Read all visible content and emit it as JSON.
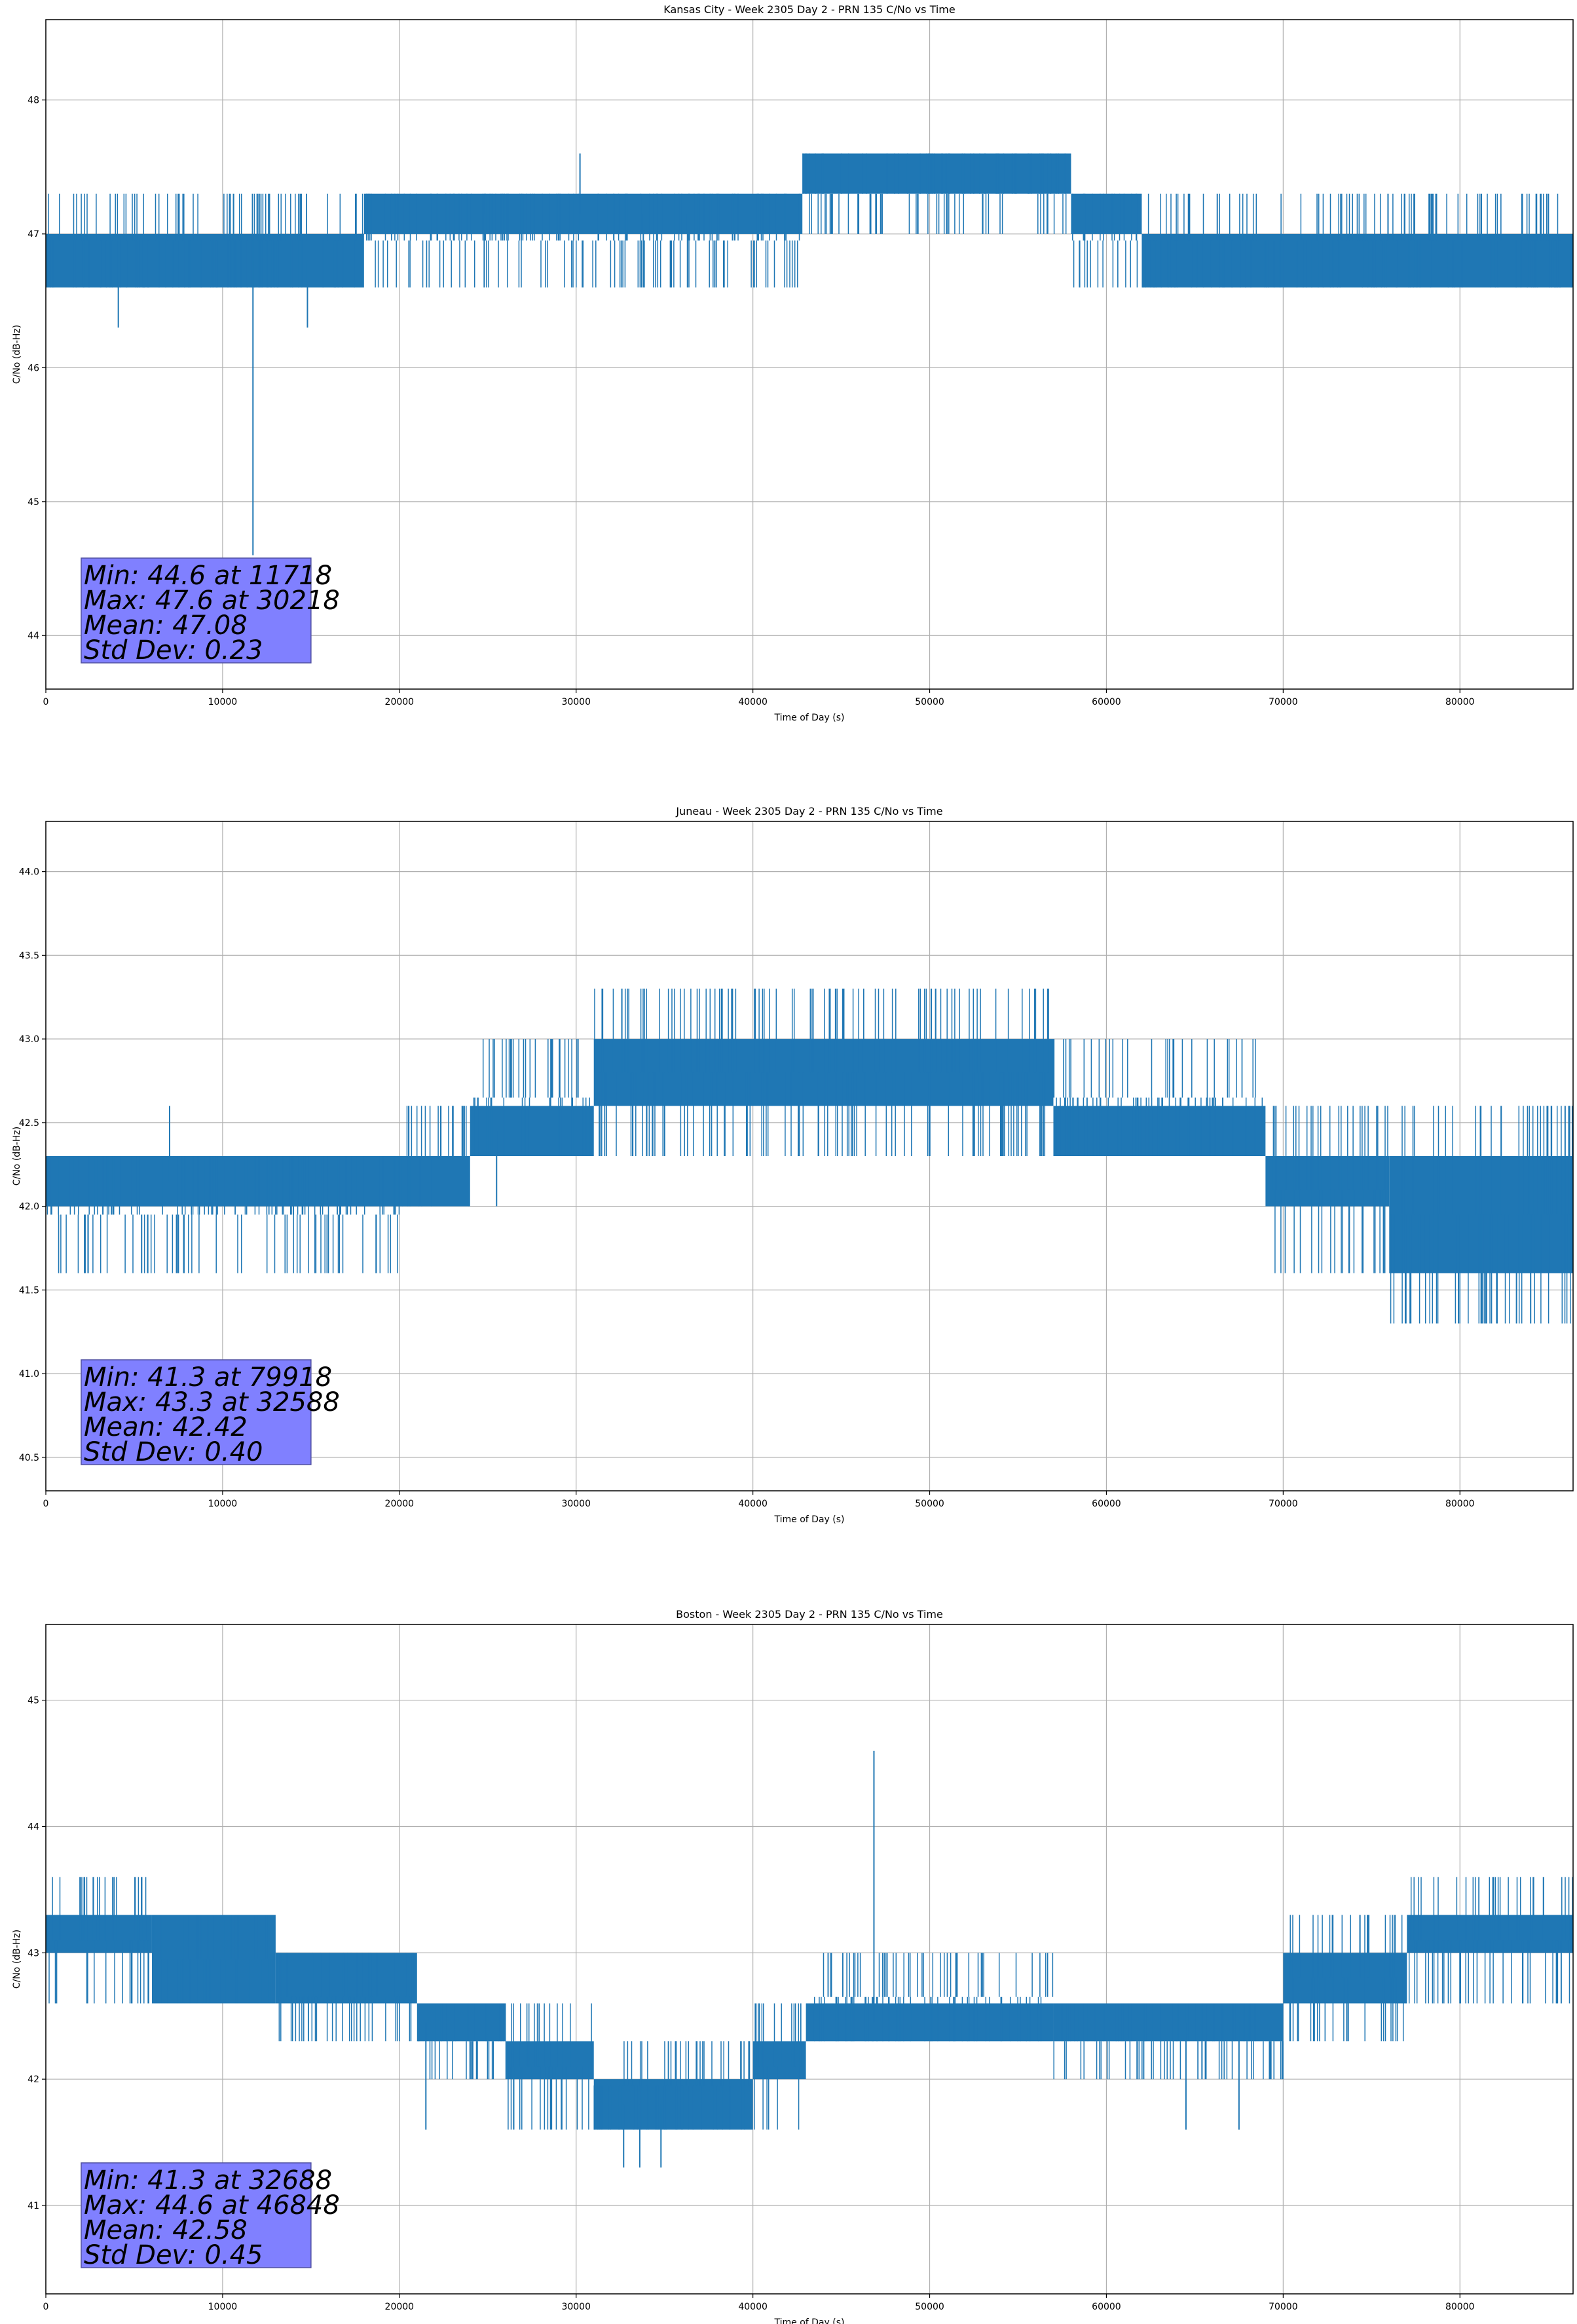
{
  "colors": {
    "series": "#1f77b4",
    "grid": "#b0b0b0",
    "stats_box_fill": "#8080ff",
    "stats_box_edge": "#5050a0",
    "axes": "#000000"
  },
  "chart_data": [
    {
      "type": "line",
      "title": "Kansas City - Week 2305 Day 2 - PRN 135 C/No vs Time",
      "xlabel": "Time of Day (s)",
      "ylabel": "C/No (dB-Hz)",
      "xlim": [
        0,
        86400
      ],
      "ylim": [
        43.6,
        48.6
      ],
      "xticks": [
        0,
        10000,
        20000,
        30000,
        40000,
        50000,
        60000,
        70000,
        80000
      ],
      "yticks": [
        44,
        45,
        46,
        47,
        48
      ],
      "ytick_labels": [
        "44",
        "45",
        "46",
        "47",
        "48"
      ],
      "grid": true,
      "stats": [
        "Min: 44.6 at 11718",
        "Max: 47.6 at 30218",
        "Mean: 47.08",
        "Std Dev: 0.23"
      ],
      "stats_values": {
        "min": 44.6,
        "min_time": 11718,
        "max": 47.6,
        "max_time": 30218,
        "mean": 47.08,
        "std": 0.23
      },
      "series": [
        {
          "bands": [
            {
              "x": [
                0,
                18000
              ],
              "y": [
                46.6,
                47.0
              ]
            },
            {
              "x": [
                18000,
                42800
              ],
              "y": [
                47.0,
                47.3
              ]
            },
            {
              "x": [
                42800,
                58000
              ],
              "y": [
                47.3,
                47.6
              ]
            },
            {
              "x": [
                58000,
                62000
              ],
              "y": [
                47.0,
                47.3
              ]
            },
            {
              "x": [
                62000,
                86400
              ],
              "y": [
                46.6,
                47.0
              ]
            }
          ],
          "spikes": [
            {
              "x": [
                0,
                18000
              ],
              "lo": 46.6,
              "hi": 47.3
            },
            {
              "x": [
                18000,
                42800
              ],
              "lo": 46.6,
              "hi": 47.3
            },
            {
              "x": [
                42800,
                58000
              ],
              "lo": 47.0,
              "hi": 47.6
            },
            {
              "x": [
                58000,
                62000
              ],
              "lo": 46.6,
              "hi": 47.3
            },
            {
              "x": [
                62000,
                86400
              ],
              "lo": 46.6,
              "hi": 47.3
            }
          ],
          "outliers": [
            {
              "x": 11718,
              "y": 44.6
            },
            {
              "x": 4100,
              "y": 46.3
            },
            {
              "x": 14800,
              "y": 46.3
            },
            {
              "x": 30218,
              "y": 47.6
            },
            {
              "x": 24800,
              "y": 46.6
            },
            {
              "x": 33800,
              "y": 46.6
            },
            {
              "x": 36300,
              "y": 46.6
            }
          ]
        }
      ]
    },
    {
      "type": "line",
      "title": "Juneau - Week 2305 Day 2 - PRN 135 C/No vs Time",
      "xlabel": "Time of Day (s)",
      "ylabel": "C/No (dB-Hz)",
      "xlim": [
        0,
        86400
      ],
      "ylim": [
        40.3,
        44.3
      ],
      "xticks": [
        0,
        10000,
        20000,
        30000,
        40000,
        50000,
        60000,
        70000,
        80000
      ],
      "yticks": [
        40.5,
        41.0,
        41.5,
        42.0,
        42.5,
        43.0,
        43.5,
        44.0
      ],
      "ytick_labels": [
        "40.5",
        "41.0",
        "41.5",
        "42.0",
        "42.5",
        "43.0",
        "43.5",
        "44.0"
      ],
      "grid": true,
      "stats": [
        "Min: 41.3 at 79918",
        "Max: 43.3 at 32588",
        "Mean: 42.42",
        "Std Dev: 0.40"
      ],
      "stats_values": {
        "min": 41.3,
        "min_time": 79918,
        "max": 43.3,
        "max_time": 32588,
        "mean": 42.42,
        "std": 0.4
      },
      "series": [
        {
          "bands": [
            {
              "x": [
                0,
                20000
              ],
              "y": [
                42.0,
                42.3
              ]
            },
            {
              "x": [
                20000,
                24000
              ],
              "y": [
                42.0,
                42.3
              ]
            },
            {
              "x": [
                24000,
                31000
              ],
              "y": [
                42.3,
                42.6
              ]
            },
            {
              "x": [
                31000,
                57000
              ],
              "y": [
                42.6,
                43.0
              ]
            },
            {
              "x": [
                57000,
                69000
              ],
              "y": [
                42.3,
                42.6
              ]
            },
            {
              "x": [
                69000,
                76000
              ],
              "y": [
                42.0,
                42.3
              ]
            },
            {
              "x": [
                76000,
                86400
              ],
              "y": [
                41.6,
                42.3
              ]
            }
          ],
          "spikes": [
            {
              "x": [
                0,
                20000
              ],
              "lo": 41.6,
              "hi": 42.3
            },
            {
              "x": [
                20000,
                24000
              ],
              "lo": 42.0,
              "hi": 42.6
            },
            {
              "x": [
                24000,
                31000
              ],
              "lo": 42.3,
              "hi": 43.0
            },
            {
              "x": [
                31000,
                57000
              ],
              "lo": 42.3,
              "hi": 43.3
            },
            {
              "x": [
                57000,
                69000
              ],
              "lo": 42.3,
              "hi": 43.0
            },
            {
              "x": [
                69000,
                76000
              ],
              "lo": 41.6,
              "hi": 42.6
            },
            {
              "x": [
                76000,
                86400
              ],
              "lo": 41.3,
              "hi": 42.6
            }
          ],
          "outliers": [
            {
              "x": 79918,
              "y": 41.3
            },
            {
              "x": 81200,
              "y": 41.3
            },
            {
              "x": 83200,
              "y": 41.3
            },
            {
              "x": 84000,
              "y": 41.3
            },
            {
              "x": 32588,
              "y": 43.3
            },
            {
              "x": 7000,
              "y": 42.6
            },
            {
              "x": 25500,
              "y": 42.0
            }
          ]
        }
      ]
    },
    {
      "type": "line",
      "title": "Boston - Week 2305 Day 2 - PRN 135 C/No vs Time",
      "xlabel": "Time of Day (s)",
      "ylabel": "C/No (dB-Hz)",
      "xlim": [
        0,
        86400
      ],
      "ylim": [
        40.3,
        45.6
      ],
      "xticks": [
        0,
        10000,
        20000,
        30000,
        40000,
        50000,
        60000,
        70000,
        80000
      ],
      "yticks": [
        41,
        42,
        43,
        44,
        45
      ],
      "ytick_labels": [
        "41",
        "42",
        "43",
        "44",
        "45"
      ],
      "grid": true,
      "stats": [
        "Min: 41.3 at 32688",
        "Max: 44.6 at 46848",
        "Mean: 42.58",
        "Std Dev: 0.45"
      ],
      "stats_values": {
        "min": 41.3,
        "min_time": 32688,
        "max": 44.6,
        "max_time": 46848,
        "mean": 42.58,
        "std": 0.45
      },
      "series": [
        {
          "bands": [
            {
              "x": [
                0,
                6000
              ],
              "y": [
                43.0,
                43.3
              ]
            },
            {
              "x": [
                6000,
                13000
              ],
              "y": [
                42.6,
                43.3
              ]
            },
            {
              "x": [
                13000,
                21000
              ],
              "y": [
                42.6,
                43.0
              ]
            },
            {
              "x": [
                21000,
                26000
              ],
              "y": [
                42.3,
                42.6
              ]
            },
            {
              "x": [
                26000,
                31000
              ],
              "y": [
                42.0,
                42.3
              ]
            },
            {
              "x": [
                31000,
                40000
              ],
              "y": [
                41.6,
                42.0
              ]
            },
            {
              "x": [
                40000,
                43000
              ],
              "y": [
                42.0,
                42.3
              ]
            },
            {
              "x": [
                43000,
                57000
              ],
              "y": [
                42.3,
                42.6
              ]
            },
            {
              "x": [
                57000,
                66000
              ],
              "y": [
                42.3,
                42.6
              ]
            },
            {
              "x": [
                66000,
                70000
              ],
              "y": [
                42.3,
                42.6
              ]
            },
            {
              "x": [
                70000,
                77000
              ],
              "y": [
                42.6,
                43.0
              ]
            },
            {
              "x": [
                77000,
                86400
              ],
              "y": [
                43.0,
                43.3
              ]
            }
          ],
          "spikes": [
            {
              "x": [
                0,
                6000
              ],
              "lo": 42.6,
              "hi": 43.6
            },
            {
              "x": [
                6000,
                13000
              ],
              "lo": 42.6,
              "hi": 43.3
            },
            {
              "x": [
                13000,
                21000
              ],
              "lo": 42.3,
              "hi": 43.0
            },
            {
              "x": [
                21000,
                26000
              ],
              "lo": 42.0,
              "hi": 42.6
            },
            {
              "x": [
                26000,
                31000
              ],
              "lo": 41.6,
              "hi": 42.6
            },
            {
              "x": [
                31000,
                40000
              ],
              "lo": 41.6,
              "hi": 42.3
            },
            {
              "x": [
                40000,
                43000
              ],
              "lo": 41.6,
              "hi": 42.6
            },
            {
              "x": [
                43000,
                57000
              ],
              "lo": 42.3,
              "hi": 43.0
            },
            {
              "x": [
                57000,
                66000
              ],
              "lo": 42.0,
              "hi": 42.6
            },
            {
              "x": [
                66000,
                70000
              ],
              "lo": 42.0,
              "hi": 42.6
            },
            {
              "x": [
                70000,
                77000
              ],
              "lo": 42.3,
              "hi": 43.3
            },
            {
              "x": [
                77000,
                86400
              ],
              "lo": 42.6,
              "hi": 43.6
            }
          ],
          "outliers": [
            {
              "x": 32688,
              "y": 41.3
            },
            {
              "x": 33600,
              "y": 41.3
            },
            {
              "x": 34800,
              "y": 41.3
            },
            {
              "x": 46848,
              "y": 44.6
            },
            {
              "x": 21500,
              "y": 41.6
            },
            {
              "x": 64500,
              "y": 41.6
            },
            {
              "x": 67500,
              "y": 41.6
            }
          ]
        }
      ]
    }
  ]
}
